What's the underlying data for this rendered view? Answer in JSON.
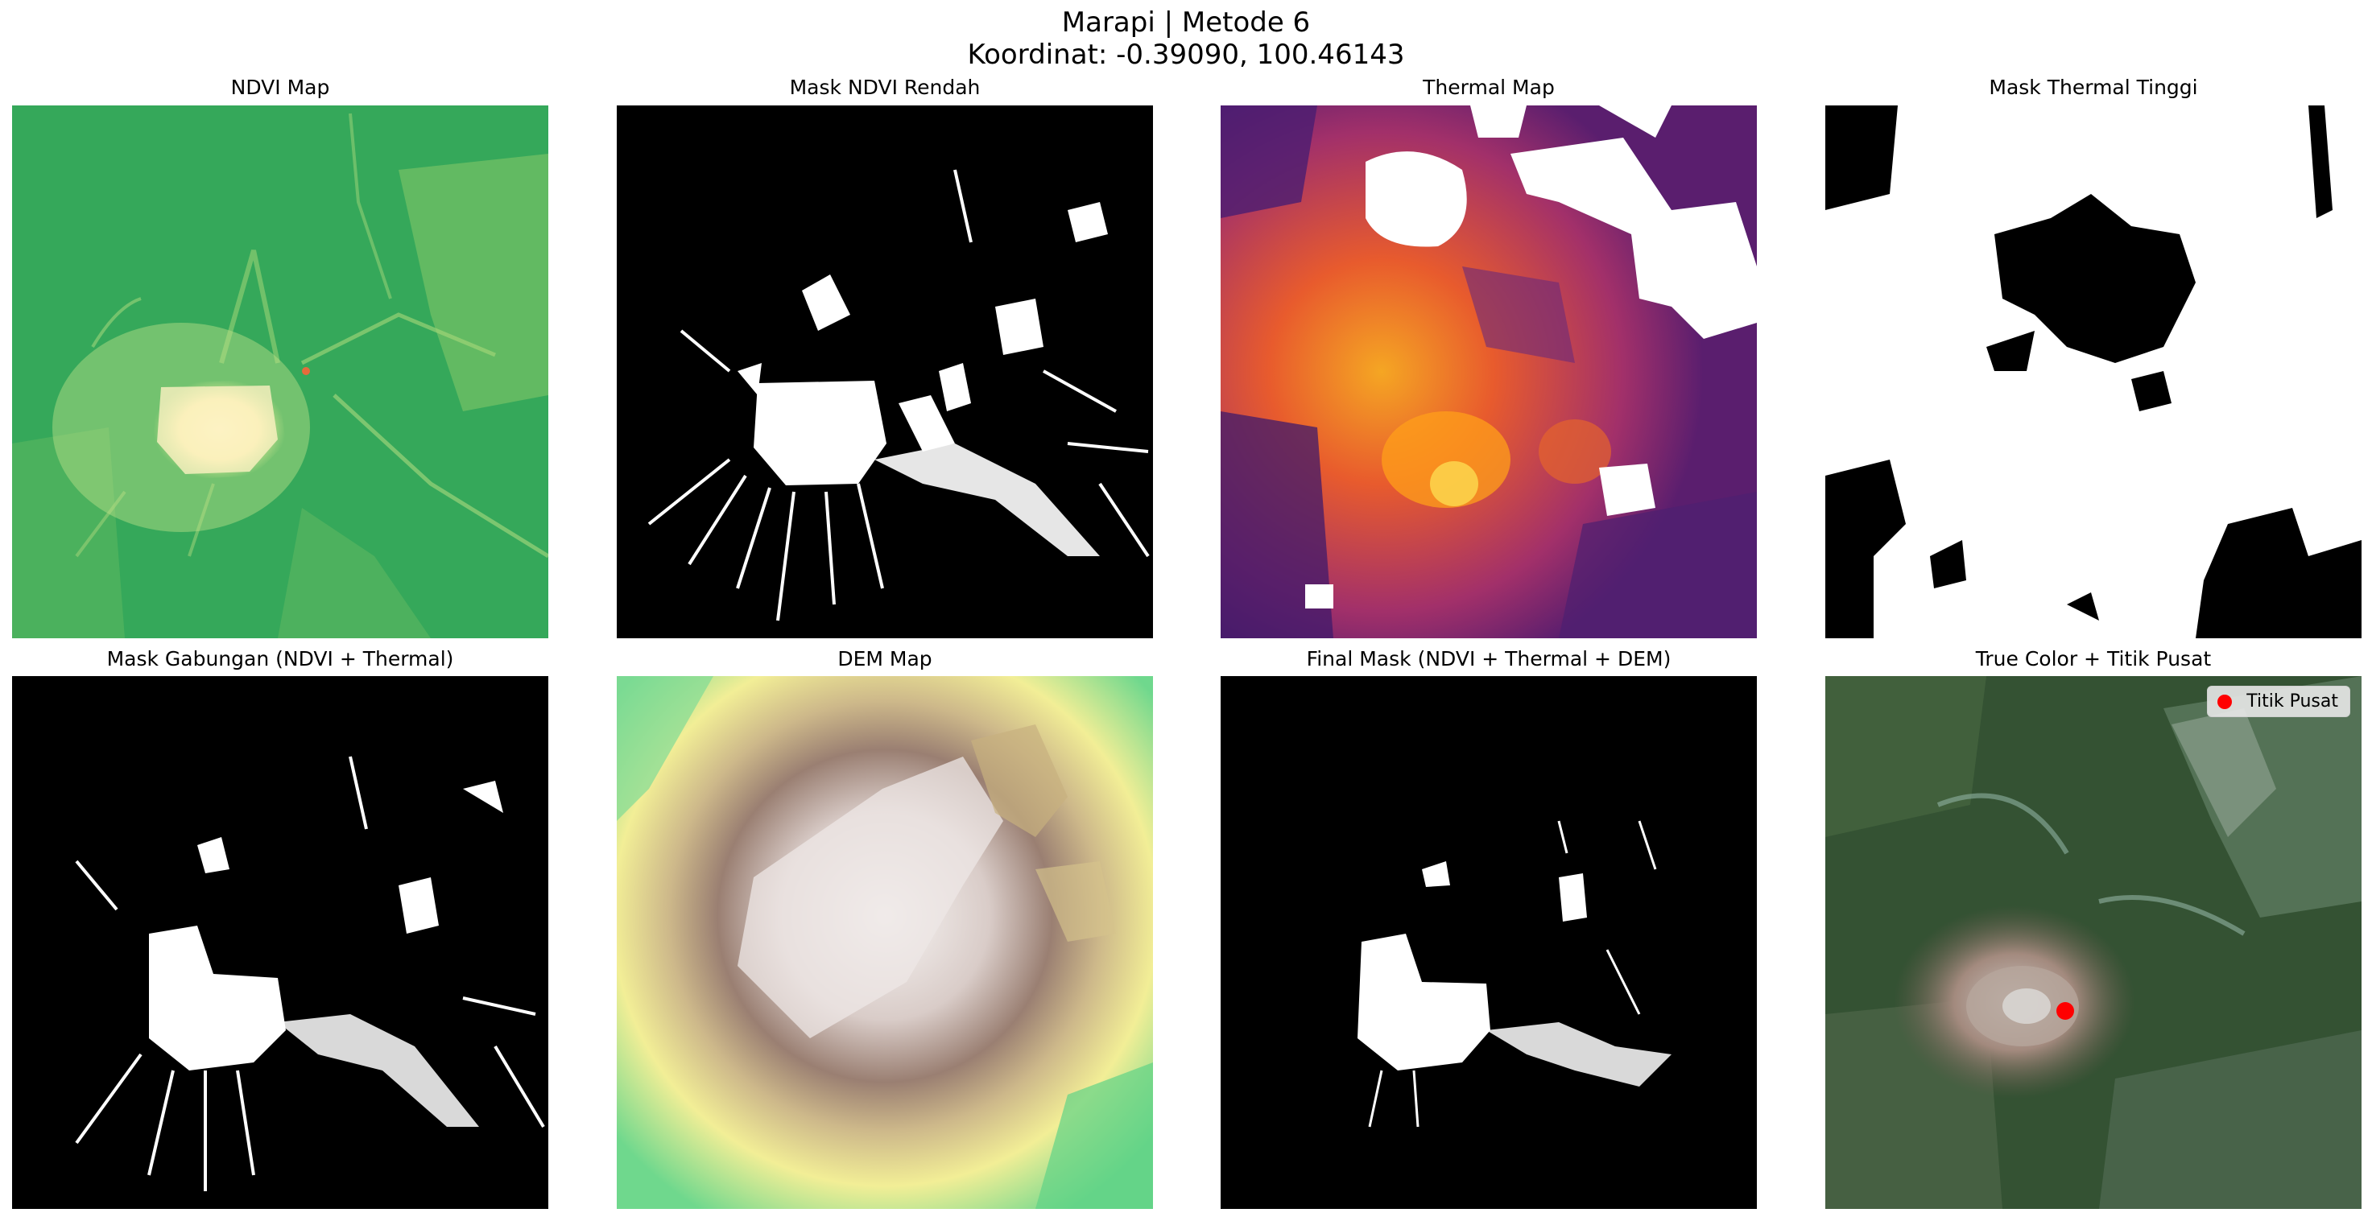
{
  "figure": {
    "title_line1": "Marapi | Metode 6",
    "title_line2": "Koordinat: -0.39090, 100.46143"
  },
  "panels": [
    {
      "title": "NDVI Map",
      "colormap": "RdYlGn"
    },
    {
      "title": "Mask NDVI Rendah",
      "colormap": "gray"
    },
    {
      "title": "Thermal Map",
      "colormap": "inferno"
    },
    {
      "title": "Mask Thermal Tinggi",
      "colormap": "gray"
    },
    {
      "title": "Mask Gabungan (NDVI + Thermal)",
      "colormap": "gray"
    },
    {
      "title": "DEM Map",
      "colormap": "terrain"
    },
    {
      "title": "Final Mask (NDVI + Thermal + DEM)",
      "colormap": "gray"
    },
    {
      "title": "True Color + Titik Pusat",
      "colormap": "rgb"
    }
  ],
  "legend": {
    "label": "Titik Pusat",
    "marker_color": "#ff0000"
  }
}
